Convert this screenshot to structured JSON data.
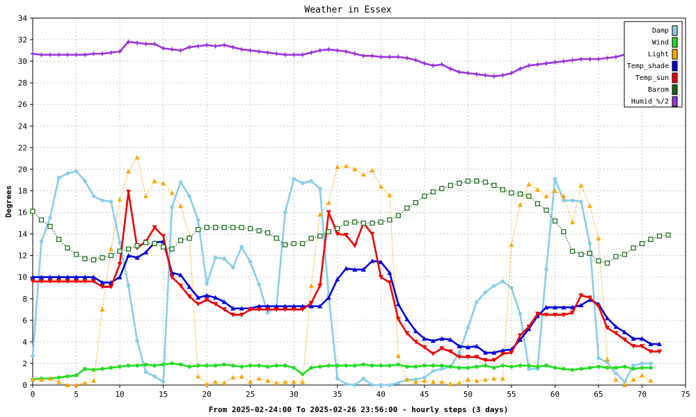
{
  "chart_data": {
    "type": "line",
    "title": "Weather in Essex",
    "xlabel": "From 2025-02-24:00 To 2025-02-26 23:56:00 - hourly steps (3 days)",
    "ylabel": "Degrees",
    "xlim": [
      0,
      75
    ],
    "ylim": [
      0,
      34
    ],
    "x_ticks": [
      0,
      5,
      10,
      15,
      20,
      25,
      30,
      35,
      40,
      45,
      50,
      55,
      60,
      65,
      70,
      75
    ],
    "y_ticks": [
      0,
      2,
      4,
      6,
      8,
      10,
      12,
      14,
      16,
      18,
      20,
      22,
      24,
      26,
      28,
      30,
      32,
      34
    ],
    "grid": true,
    "legend_position": "top-right",
    "series": [
      {
        "name": "Damp",
        "color": "#87ceeb",
        "marker": "dot",
        "style": "solid",
        "values": [
          2.7,
          13.3,
          15.5,
          19.2,
          19.6,
          19.8,
          18.9,
          17.5,
          17.1,
          17,
          13.2,
          9.2,
          4.1,
          1.2,
          0.8,
          0.3,
          16.5,
          18.8,
          17.5,
          15.3,
          9.4,
          11.8,
          11.7,
          10.9,
          12.8,
          11.4,
          9.3,
          6.7,
          7.2,
          16,
          19.1,
          18.7,
          18.9,
          18.2,
          8.3,
          0.6,
          0.1,
          0,
          0.6,
          0,
          0,
          0,
          0.2,
          0.5,
          0.5,
          0.7,
          1.3,
          1.5,
          1.7,
          3,
          5.3,
          7.7,
          8.6,
          9.2,
          9.6,
          9,
          6.6,
          1.5,
          1.5,
          10.7,
          19.1,
          17.1,
          17.1,
          17,
          13.1,
          2.5,
          2.1,
          1.1,
          0.3,
          1.8,
          2,
          2
        ]
      },
      {
        "name": "Wind",
        "color": "#22dd22",
        "marker": "dot",
        "style": "solid",
        "values": [
          0.5,
          0.6,
          0.6,
          0.7,
          0.8,
          0.9,
          1.5,
          1.4,
          1.5,
          1.6,
          1.7,
          1.8,
          1.8,
          1.9,
          1.8,
          1.9,
          2,
          1.9,
          1.7,
          1.8,
          1.8,
          1.8,
          1.9,
          1.8,
          1.7,
          1.8,
          1.8,
          1.7,
          1.8,
          1.8,
          1.6,
          1,
          1.6,
          1.7,
          1.8,
          1.8,
          1.8,
          1.8,
          1.9,
          1.8,
          1.8,
          1.8,
          1.9,
          1.7,
          1.7,
          1.8,
          1.8,
          1.8,
          1.7,
          1.6,
          1.6,
          1.7,
          1.8,
          1.6,
          1.8,
          1.7,
          1.8,
          1.8,
          1.7,
          1.8,
          1.6,
          1.5,
          1.4,
          1.5,
          1.6,
          1.7,
          1.6,
          1.6,
          1.7,
          1.5,
          1.6,
          1.6
        ]
      },
      {
        "name": "Light",
        "color": "#ffa500",
        "marker": "triangle-up",
        "style": "dotted",
        "values": [
          0.5,
          0.5,
          0.6,
          0.3,
          0,
          0,
          0.2,
          0.4,
          7,
          12.6,
          17.2,
          19.8,
          21.1,
          17.5,
          18.9,
          18.7,
          17.8,
          16.6,
          13.8,
          0.8,
          0.1,
          0.3,
          0.2,
          0.7,
          0.8,
          0.3,
          0.6,
          0.4,
          0.2,
          0.3,
          0.3,
          0.3,
          9.2,
          15.8,
          16.9,
          20.2,
          20.3,
          20,
          19.5,
          19.9,
          18.4,
          17.6,
          2.7,
          0.5,
          0.3,
          0.4,
          0.3,
          0.3,
          0.1,
          0.2,
          0.5,
          0.4,
          0.5,
          0.6,
          0.6,
          13,
          16.7,
          18.6,
          18.1,
          17.5,
          18,
          17.5,
          15.1,
          18.5,
          16.6,
          13.6,
          2.4,
          0.5,
          0,
          0.5,
          0.9,
          0.4
        ]
      },
      {
        "name": "Temp_shade",
        "color": "#0000dd",
        "marker": "triangle-up",
        "style": "solid",
        "values": [
          10,
          10,
          10,
          10,
          10,
          10,
          10,
          10,
          9.5,
          9.5,
          10,
          12,
          11.8,
          12.3,
          13.2,
          13.3,
          10.4,
          10.2,
          9.1,
          8.1,
          8.3,
          8.1,
          7.7,
          7.1,
          7.1,
          7.1,
          7.3,
          7.3,
          7.3,
          7.3,
          7.3,
          7.3,
          7.3,
          7.3,
          8.1,
          9.8,
          10.8,
          10.7,
          10.7,
          11.5,
          11.4,
          10.4,
          7.5,
          6.1,
          5,
          4.3,
          4.1,
          4.3,
          4.2,
          3.6,
          3.5,
          3.6,
          3,
          3,
          3.2,
          3.3,
          4.2,
          5.2,
          6.4,
          7.2,
          7.2,
          7.2,
          7.2,
          7.4,
          7.9,
          7.5,
          6.2,
          5.4,
          4.9,
          4.3,
          4.3,
          3.8,
          3.8
        ]
      },
      {
        "name": "Temp_sun",
        "color": "#ee0000",
        "marker": "triangle-down",
        "style": "solid",
        "values": [
          9.6,
          9.6,
          9.6,
          9.6,
          9.6,
          9.6,
          9.6,
          9.6,
          9.1,
          9.1,
          11.2,
          17.9,
          12.7,
          13.3,
          14.6,
          13.8,
          10,
          9.2,
          8.2,
          7.5,
          7.9,
          7.5,
          7,
          6.5,
          6.5,
          7,
          7,
          7,
          7,
          7,
          7,
          7,
          7.6,
          9.2,
          16,
          14,
          13.9,
          12.9,
          15,
          14,
          10,
          9.5,
          6.1,
          4.8,
          4,
          3.5,
          2.9,
          3.4,
          3.1,
          2.6,
          2.6,
          2.6,
          2.3,
          2.3,
          2.9,
          3,
          4.6,
          5.4,
          6.6,
          6.5,
          6.5,
          6.5,
          6.7,
          8.3,
          8.1,
          7.3,
          5.3,
          4.8,
          4.2,
          3.6,
          3.6,
          3.1,
          3.1
        ]
      },
      {
        "name": "Barom",
        "color": "#116611",
        "marker": "square",
        "style": "dotted",
        "values": [
          16.1,
          15.3,
          14.7,
          13.5,
          12.7,
          12.1,
          11.7,
          11.6,
          11.8,
          12,
          12.4,
          12.6,
          12.9,
          13.2,
          13.1,
          12.8,
          12.6,
          13.4,
          13.6,
          14.4,
          14.6,
          14.6,
          14.6,
          14.6,
          14.6,
          14.5,
          14.3,
          14.1,
          13.6,
          13,
          13.1,
          13.1,
          13.6,
          13.8,
          14.2,
          14.5,
          15,
          15.1,
          15,
          15,
          15.1,
          15.3,
          15.7,
          16.4,
          16.9,
          17.5,
          17.9,
          18.2,
          18.5,
          18.7,
          18.9,
          18.9,
          18.8,
          18.5,
          18.1,
          17.8,
          17.7,
          17.5,
          16.8,
          16.2,
          15.2,
          14.2,
          12.4,
          12.1,
          12.2,
          11.5,
          11.3,
          11.9,
          12.1,
          12.7,
          13.1,
          13.5,
          13.8,
          13.9
        ]
      },
      {
        "name": "Humid_%/2",
        "color": "#9933dd",
        "marker": "star",
        "style": "solid",
        "values": [
          30.7,
          30.6,
          30.6,
          30.6,
          30.6,
          30.6,
          30.6,
          30.7,
          30.7,
          30.8,
          30.9,
          31.8,
          31.7,
          31.6,
          31.6,
          31.2,
          31.1,
          31,
          31.3,
          31.4,
          31.5,
          31.4,
          31.5,
          31.3,
          31.1,
          31,
          30.9,
          30.8,
          30.7,
          30.6,
          30.6,
          30.6,
          30.8,
          31,
          31.1,
          31,
          30.9,
          30.7,
          30.5,
          30.5,
          30.4,
          30.4,
          30.4,
          30.3,
          30.1,
          29.8,
          29.6,
          29.7,
          29.3,
          29,
          28.9,
          28.8,
          28.7,
          28.6,
          28.7,
          28.9,
          29.3,
          29.6,
          29.7,
          29.8,
          29.9,
          30,
          30.1,
          30.2,
          30.2,
          30.2,
          30.3,
          30.4,
          30.6,
          30.7,
          30.9,
          31
        ]
      }
    ]
  }
}
